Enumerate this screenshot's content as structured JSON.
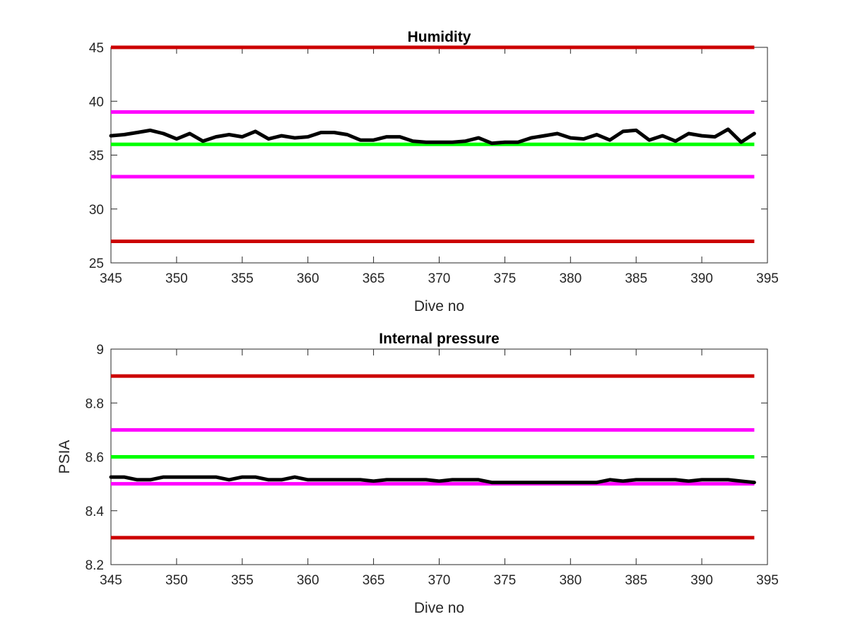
{
  "chart_data": [
    {
      "type": "line",
      "title": "Humidity",
      "xlabel": "Dive no",
      "ylabel": "",
      "xlim": [
        345,
        395
      ],
      "ylim": [
        25,
        45
      ],
      "xticks": [
        345,
        350,
        355,
        360,
        365,
        370,
        375,
        380,
        385,
        390,
        395
      ],
      "yticks": [
        25,
        30,
        35,
        40,
        45
      ],
      "grid": false,
      "reference_lines": [
        {
          "y": 45,
          "color": "#cc0000",
          "x": [
            345,
            394
          ]
        },
        {
          "y": 39,
          "color": "#ff00ff",
          "x": [
            345,
            394
          ]
        },
        {
          "y": 36,
          "color": "#00ff00",
          "x": [
            345,
            394
          ]
        },
        {
          "y": 33,
          "color": "#ff00ff",
          "x": [
            345,
            394
          ]
        },
        {
          "y": 27,
          "color": "#cc0000",
          "x": [
            345,
            394
          ]
        }
      ],
      "series": [
        {
          "color": "#000000",
          "x": [
            345,
            346,
            347,
            348,
            349,
            350,
            351,
            352,
            353,
            354,
            355,
            356,
            357,
            358,
            359,
            360,
            361,
            362,
            363,
            364,
            365,
            366,
            367,
            368,
            369,
            370,
            371,
            372,
            373,
            374,
            375,
            376,
            377,
            378,
            379,
            380,
            381,
            382,
            383,
            384,
            385,
            386,
            387,
            388,
            389,
            390,
            391,
            392,
            393,
            394
          ],
          "values": [
            36.8,
            36.9,
            37.1,
            37.3,
            37.0,
            36.5,
            37.0,
            36.3,
            36.7,
            36.9,
            36.7,
            37.2,
            36.5,
            36.8,
            36.6,
            36.7,
            37.1,
            37.1,
            36.9,
            36.4,
            36.4,
            36.7,
            36.7,
            36.3,
            36.2,
            36.2,
            36.2,
            36.3,
            36.6,
            36.1,
            36.2,
            36.2,
            36.6,
            36.8,
            37.0,
            36.6,
            36.5,
            36.9,
            36.4,
            37.2,
            37.3,
            36.4,
            36.8,
            36.3,
            37.0,
            36.8,
            36.7,
            37.4,
            36.2,
            37.0
          ]
        }
      ]
    },
    {
      "type": "line",
      "title": "Internal pressure",
      "xlabel": "Dive no",
      "ylabel": "PSIA",
      "xlim": [
        345,
        395
      ],
      "ylim": [
        8.2,
        9.0
      ],
      "xticks": [
        345,
        350,
        355,
        360,
        365,
        370,
        375,
        380,
        385,
        390,
        395
      ],
      "yticks": [
        8.2,
        8.4,
        8.6,
        8.8,
        9
      ],
      "grid": false,
      "reference_lines": [
        {
          "y": 8.9,
          "color": "#cc0000",
          "x": [
            345,
            394
          ]
        },
        {
          "y": 8.7,
          "color": "#ff00ff",
          "x": [
            345,
            394
          ]
        },
        {
          "y": 8.6,
          "color": "#00ff00",
          "x": [
            345,
            394
          ]
        },
        {
          "y": 8.5,
          "color": "#ff00ff",
          "x": [
            345,
            394
          ]
        },
        {
          "y": 8.3,
          "color": "#cc0000",
          "x": [
            345,
            394
          ]
        }
      ],
      "series": [
        {
          "color": "#000000",
          "x": [
            345,
            346,
            347,
            348,
            349,
            350,
            351,
            352,
            353,
            354,
            355,
            356,
            357,
            358,
            359,
            360,
            361,
            362,
            363,
            364,
            365,
            366,
            367,
            368,
            369,
            370,
            371,
            372,
            373,
            374,
            375,
            376,
            377,
            378,
            379,
            380,
            381,
            382,
            383,
            384,
            385,
            386,
            387,
            388,
            389,
            390,
            391,
            392,
            393,
            394
          ],
          "values": [
            8.525,
            8.525,
            8.515,
            8.515,
            8.525,
            8.525,
            8.525,
            8.525,
            8.525,
            8.515,
            8.525,
            8.525,
            8.515,
            8.515,
            8.525,
            8.515,
            8.515,
            8.515,
            8.515,
            8.515,
            8.51,
            8.515,
            8.515,
            8.515,
            8.515,
            8.51,
            8.515,
            8.515,
            8.515,
            8.505,
            8.505,
            8.505,
            8.505,
            8.505,
            8.505,
            8.505,
            8.505,
            8.505,
            8.515,
            8.51,
            8.515,
            8.515,
            8.515,
            8.515,
            8.51,
            8.515,
            8.515,
            8.515,
            8.51,
            8.505
          ]
        }
      ]
    }
  ]
}
